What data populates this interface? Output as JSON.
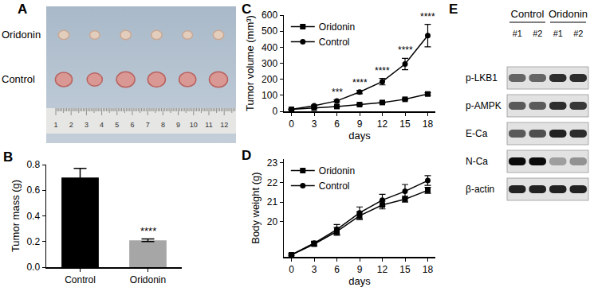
{
  "chart_data": [
    {
      "panel_label": "B",
      "type": "bar",
      "categories": [
        "Control",
        "Oridonin"
      ],
      "values": [
        0.7,
        0.21
      ],
      "errors": [
        0.07,
        0.01
      ],
      "colors": [
        "#000000",
        "#a6a6a6"
      ],
      "y_label": "Tumor mass (g)",
      "ylim": [
        0,
        0.8
      ],
      "yticks": [
        {
          "value": 0,
          "label": "0.0"
        },
        0.2,
        0.4,
        0.6,
        0.8
      ],
      "grid": false,
      "annotations": [
        {
          "text": "****",
          "category": "Oridonin"
        }
      ]
    },
    {
      "panel_label": "C",
      "type": "line",
      "x": [
        0,
        3,
        6,
        9,
        12,
        15,
        18
      ],
      "series": [
        {
          "name": "Oridonin",
          "color": "#000000",
          "marker": "square",
          "values": [
            12,
            20,
            30,
            42,
            55,
            75,
            108
          ],
          "errors": [
            1,
            2,
            2,
            3,
            4,
            5,
            8
          ]
        },
        {
          "name": "Control",
          "color": "#000000",
          "marker": "circle",
          "values": [
            12,
            35,
            65,
            120,
            185,
            295,
            472
          ],
          "errors": [
            2,
            4,
            6,
            10,
            20,
            35,
            70
          ]
        }
      ],
      "x_label": "days",
      "y_label": "Tumor volume (mm³)",
      "xlim": [
        -1,
        19
      ],
      "xticks": [
        0,
        3,
        6,
        9,
        12,
        15,
        18
      ],
      "ylim": [
        0,
        600
      ],
      "yticks": [
        0,
        100,
        200,
        300,
        400,
        500,
        600
      ],
      "grid": false,
      "legend": "upper left",
      "annotations": [
        {
          "text": "***",
          "x": 6
        },
        {
          "text": "****",
          "x": 9
        },
        {
          "text": "****",
          "x": 12
        },
        {
          "text": "****",
          "x": 15
        },
        {
          "text": "****",
          "x": 18
        }
      ]
    },
    {
      "panel_label": "D",
      "type": "line",
      "x": [
        0,
        3,
        6,
        9,
        12,
        15,
        18
      ],
      "series": [
        {
          "name": "Oridonin",
          "color": "#000000",
          "marker": "square",
          "values": [
            18.3,
            18.85,
            19.5,
            20.3,
            20.85,
            21.15,
            21.6
          ],
          "errors": [
            0.05,
            0.1,
            0.2,
            0.2,
            0.2,
            0.15,
            0.15
          ]
        },
        {
          "name": "Control",
          "color": "#000000",
          "marker": "circle",
          "values": [
            18.3,
            18.9,
            19.6,
            20.45,
            21.1,
            21.55,
            22.1
          ],
          "errors": [
            0.05,
            0.1,
            0.25,
            0.3,
            0.3,
            0.35,
            0.25
          ]
        }
      ],
      "x_label": "days",
      "y_label": "Body weight (g)",
      "xlim": [
        -1,
        19
      ],
      "xticks": [
        0,
        3,
        6,
        9,
        12,
        15,
        18
      ],
      "ylim": [
        18.2,
        23.2
      ],
      "yticks": [
        20,
        21,
        22,
        23
      ],
      "grid": false,
      "legend": "upper left"
    }
  ],
  "photo": {
    "panel_label": "A",
    "rows": [
      {
        "label": "Oridonin",
        "diameters_cm": [
          0.7,
          0.65,
          0.7,
          0.7,
          0.65,
          0.7
        ]
      },
      {
        "label": "Control",
        "diameters_cm": [
          1.1,
          1.0,
          1.2,
          1.15,
          1.1,
          1.2
        ]
      }
    ],
    "scale_labels": [
      "1",
      "2",
      "3",
      "4",
      "5",
      "6",
      "7",
      "8",
      "9",
      "10",
      "11",
      "12"
    ]
  },
  "western_blot": {
    "panel_label": "E",
    "groups": [
      {
        "label": "Control",
        "lanes": [
          "#1",
          "#2"
        ]
      },
      {
        "label": "Oridonin",
        "lanes": [
          "#1",
          "#2"
        ]
      }
    ],
    "bands": [
      {
        "label": "p-LKB1",
        "intensity": [
          0.55,
          0.55,
          0.8,
          0.8
        ]
      },
      {
        "label": "p-AMPK",
        "intensity": [
          0.6,
          0.6,
          0.8,
          0.75
        ]
      },
      {
        "label": "E-Ca",
        "intensity": [
          0.6,
          0.65,
          0.85,
          0.8
        ]
      },
      {
        "label": "N-Ca",
        "intensity": [
          0.95,
          0.95,
          0.3,
          0.35
        ]
      },
      {
        "label": "β-actin",
        "intensity": [
          0.85,
          0.85,
          0.85,
          0.85
        ]
      }
    ]
  }
}
